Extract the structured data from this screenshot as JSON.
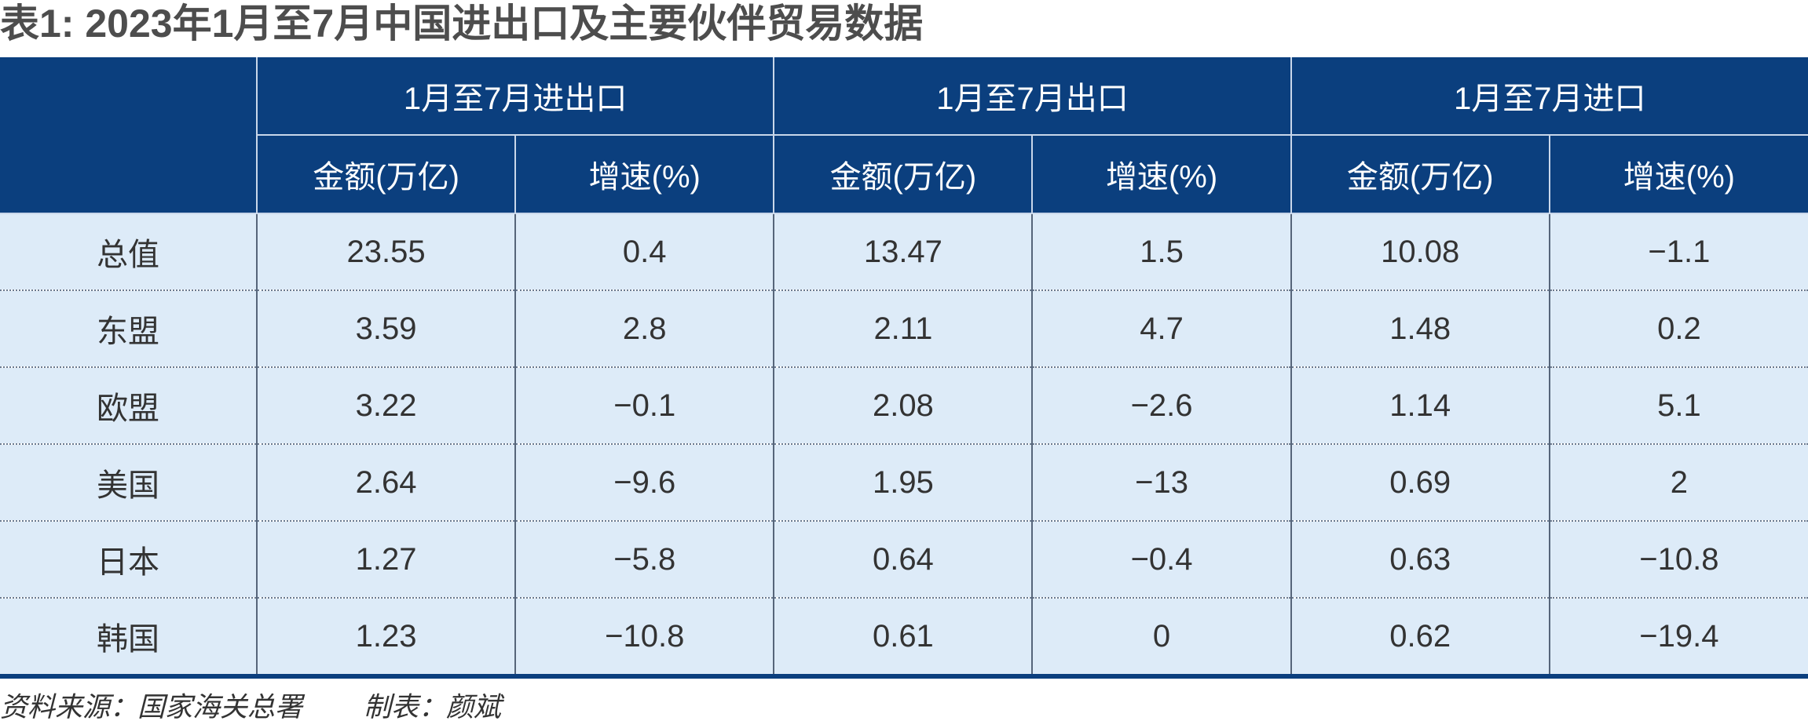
{
  "title": "表1: 2023年1月至7月中国进出口及主要伙伴贸易数据",
  "table": {
    "groups": [
      "1月至7月进出口",
      "1月至7月出口",
      "1月至7月进口"
    ],
    "subheaders": [
      "金额(万亿)",
      "增速(%)",
      "金额(万亿)",
      "增速(%)",
      "金额(万亿)",
      "增速(%)"
    ],
    "rows": [
      [
        "总值",
        "23.55",
        "0.4",
        "13.47",
        "1.5",
        "10.08",
        "−1.1"
      ],
      [
        "东盟",
        "3.59",
        "2.8",
        "2.11",
        "4.7",
        "1.48",
        "0.2"
      ],
      [
        "欧盟",
        "3.22",
        "−0.1",
        "2.08",
        "−2.6",
        "1.14",
        "5.1"
      ],
      [
        "美国",
        "2.64",
        "−9.6",
        "1.95",
        "−13",
        "0.69",
        "2"
      ],
      [
        "日本",
        "1.27",
        "−5.8",
        "0.64",
        "−0.4",
        "0.63",
        "−10.8"
      ],
      [
        "韩国",
        "1.23",
        "−10.8",
        "0.61",
        "0",
        "0.62",
        "−19.4"
      ]
    ]
  },
  "footer": {
    "source": "资料来源：国家海关总署",
    "author": "制表：颜斌"
  }
}
